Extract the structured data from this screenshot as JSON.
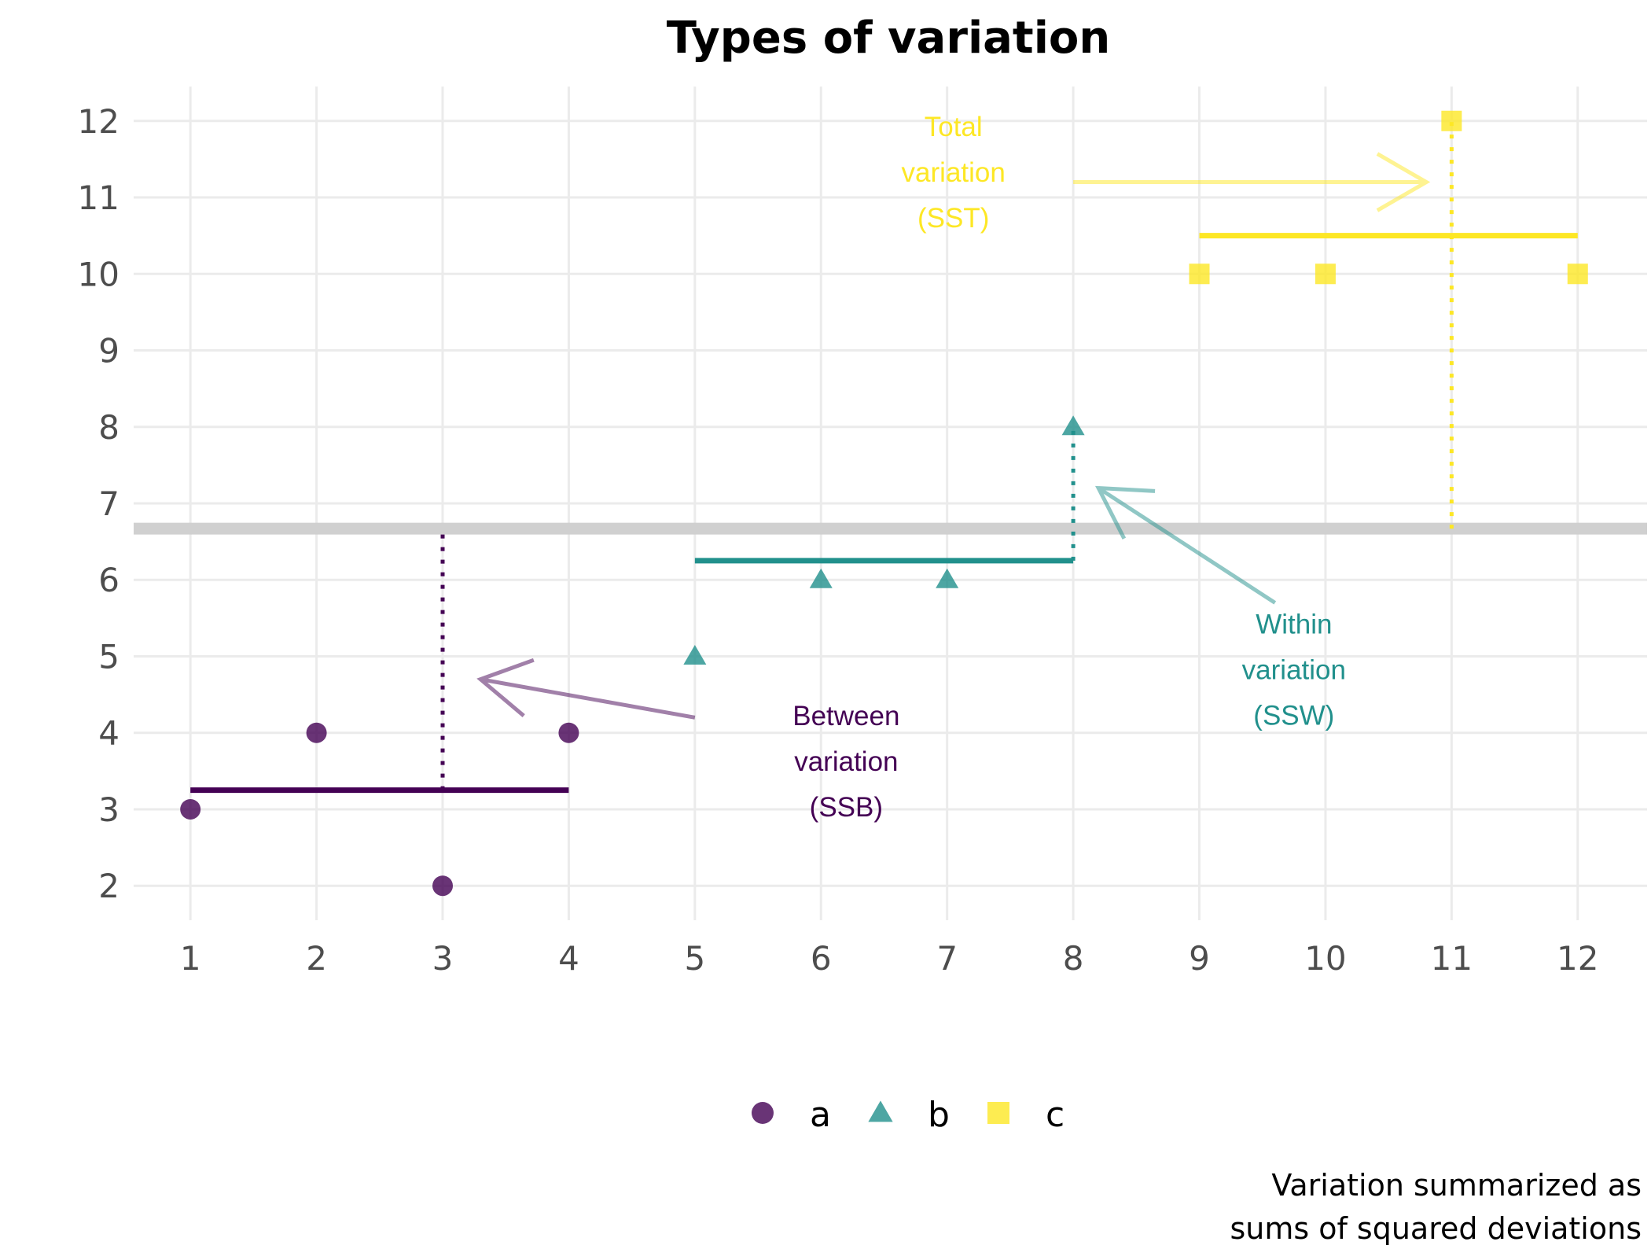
{
  "chart_data": {
    "type": "scatter",
    "title": "Types of variation",
    "caption": [
      "Variation summarized as",
      "sums of squared deviations"
    ],
    "xlabel": "",
    "ylabel": "",
    "xlim": [
      0.55,
      12.55
    ],
    "ylim": [
      1.55,
      12.45
    ],
    "x_ticks": [
      1,
      2,
      3,
      4,
      5,
      6,
      7,
      8,
      9,
      10,
      11,
      12
    ],
    "y_ticks": [
      2,
      3,
      4,
      5,
      6,
      7,
      8,
      9,
      10,
      11,
      12
    ],
    "grid": true,
    "legend_position": "bottom",
    "grand_mean": 6.67,
    "series": [
      {
        "name": "a",
        "shape": "circle",
        "color": "#440154",
        "x": [
          1,
          2,
          3,
          4
        ],
        "y": [
          3,
          4,
          2,
          4
        ],
        "mean": 3.25,
        "mean_x_range": [
          1,
          4
        ]
      },
      {
        "name": "b",
        "shape": "triangle",
        "color": "#21908C",
        "x": [
          5,
          6,
          7,
          8
        ],
        "y": [
          5,
          6,
          6,
          8
        ],
        "mean": 6.25,
        "mean_x_range": [
          5,
          8
        ]
      },
      {
        "name": "c",
        "shape": "square",
        "color": "#FDE725",
        "x": [
          9,
          10,
          11,
          12
        ],
        "y": [
          10,
          10,
          12,
          10
        ],
        "mean": 10.5,
        "mean_x_range": [
          9,
          12
        ]
      }
    ],
    "annotations": [
      {
        "lines": [
          "Between",
          "variation",
          "(SSB)"
        ],
        "color": "#440154",
        "x": 6.2,
        "y": 4.1,
        "arrow_from": [
          5,
          4.2
        ],
        "arrow_to": [
          3.3,
          4.7
        ],
        "segment_x": 3,
        "segment_y": [
          3.25,
          6.67
        ]
      },
      {
        "lines": [
          "Within",
          "variation",
          "(SSW)"
        ],
        "color": "#21908C",
        "x": 9.75,
        "y": 5.3,
        "arrow_from": [
          9.6,
          5.7
        ],
        "arrow_to": [
          8.2,
          7.2
        ],
        "segment_x": 8,
        "segment_y": [
          6.25,
          8
        ]
      },
      {
        "lines": [
          "Total",
          "variation",
          "(SST)"
        ],
        "color": "#FDE725",
        "x": 7.05,
        "y": 11.8,
        "arrow_from": [
          8,
          11.2
        ],
        "arrow_to": [
          10.8,
          11.2
        ],
        "segment_x": 11,
        "segment_y": [
          6.67,
          12
        ]
      }
    ]
  }
}
